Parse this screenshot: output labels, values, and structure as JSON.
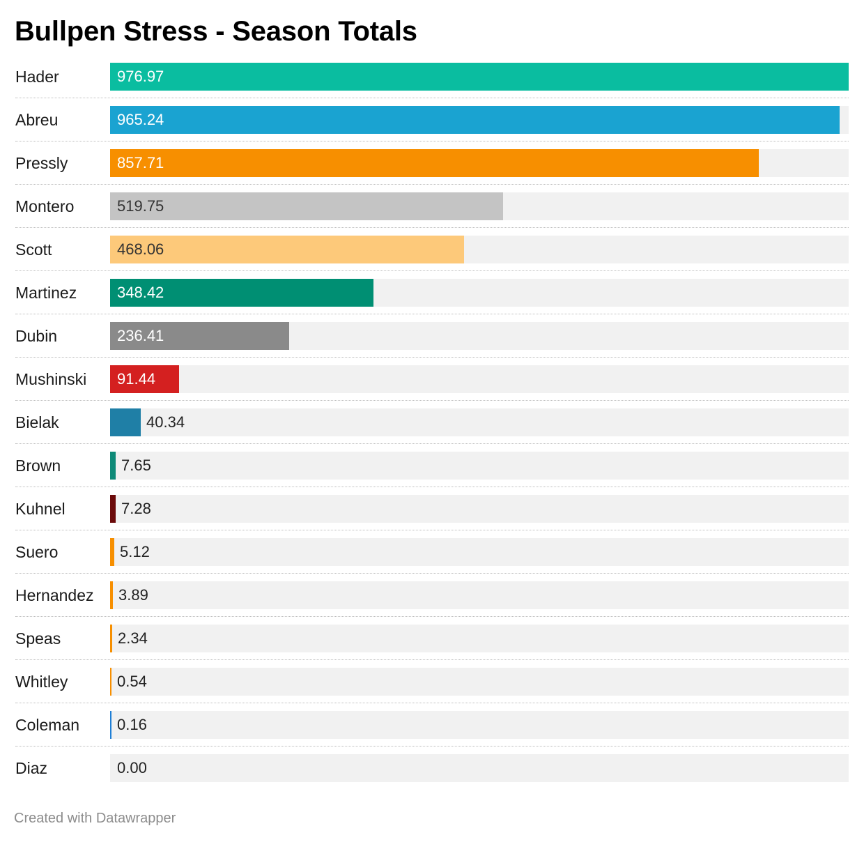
{
  "title": "Bullpen Stress - Season Totals",
  "footer": "Created with Datawrapper",
  "chart_data": {
    "type": "bar",
    "orientation": "horizontal",
    "title": "Bullpen Stress - Season Totals",
    "categories": [
      "Hader",
      "Abreu",
      "Pressly",
      "Montero",
      "Scott",
      "Martinez",
      "Dubin",
      "Mushinski",
      "Bielak",
      "Brown",
      "Kuhnel",
      "Suero",
      "Hernandez",
      "Speas",
      "Whitley",
      "Coleman",
      "Diaz"
    ],
    "values": [
      976.97,
      965.24,
      857.71,
      519.75,
      468.06,
      348.42,
      236.41,
      91.44,
      40.34,
      7.65,
      7.28,
      5.12,
      3.89,
      2.34,
      0.54,
      0.16,
      0.0
    ],
    "value_labels": [
      "976.97",
      "965.24",
      "857.71",
      "519.75",
      "468.06",
      "348.42",
      "236.41",
      "91.44",
      "40.34",
      "7.65",
      "7.28",
      "5.12",
      "3.89",
      "2.34",
      "0.54",
      "0.16",
      "0.00"
    ],
    "colors": [
      "#0abda0",
      "#1aa3d1",
      "#f78f00",
      "#c4c4c4",
      "#fdc97a",
      "#008f73",
      "#8a8a8a",
      "#d42020",
      "#1f7fa6",
      "#0e8a78",
      "#6b0a0a",
      "#f78f00",
      "#f78f00",
      "#f78f00",
      "#f78f00",
      "#1f7fd6",
      "#f78f00"
    ],
    "label_colors": [
      "#ffffff",
      "#ffffff",
      "#ffffff",
      "#333333",
      "#333333",
      "#ffffff",
      "#ffffff",
      "#ffffff",
      "#222222",
      "#222222",
      "#222222",
      "#222222",
      "#222222",
      "#222222",
      "#222222",
      "#222222",
      "#222222"
    ],
    "xlim": [
      0,
      976.97
    ],
    "track_color": "#f1f1f1",
    "grid": false,
    "legend": "none",
    "xlabel": "",
    "ylabel": ""
  }
}
